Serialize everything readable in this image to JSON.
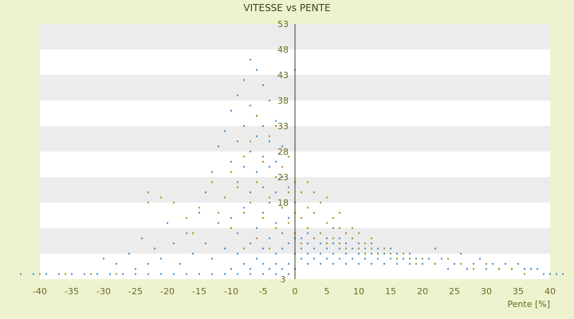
{
  "chart_data": {
    "type": "scatter",
    "title": "VITESSE vs PENTE",
    "xlabel": "Pente [%]",
    "ylabel": "",
    "xlim": [
      -40,
      40
    ],
    "ylim": [
      3,
      53
    ],
    "x_ticks": [
      -40,
      -35,
      -30,
      -25,
      -20,
      -15,
      -10,
      -5,
      0,
      5,
      10,
      15,
      20,
      25,
      30,
      35,
      40
    ],
    "y_ticks": [
      3,
      8,
      13,
      18,
      23,
      28,
      33,
      38,
      43,
      48,
      53
    ],
    "y_tick_labels": [
      "3",
      "",
      "",
      "18",
      "23",
      "28",
      "33",
      "38",
      "43",
      "48",
      "53"
    ],
    "grid": "horizontal bands",
    "colors": {
      "series_a": "#3a8fd8",
      "series_b": "#9a9a10",
      "band": "#ececec",
      "plot_bg": "#ffffff",
      "axis": "#404020"
    },
    "series": [
      {
        "color": "#3a8fd8",
        "points": [
          [
            -43,
            4
          ],
          [
            -41,
            4
          ],
          [
            -39,
            4
          ],
          [
            -37,
            4
          ],
          [
            -35,
            4
          ],
          [
            -33,
            4
          ],
          [
            -31,
            4
          ],
          [
            -29,
            4
          ],
          [
            -27,
            4
          ],
          [
            -25,
            4
          ],
          [
            -23,
            4
          ],
          [
            -21,
            4
          ],
          [
            -19,
            4
          ],
          [
            -17,
            4
          ],
          [
            -15,
            4
          ],
          [
            -13,
            4
          ],
          [
            -11,
            4
          ],
          [
            -9,
            4
          ],
          [
            -7,
            4
          ],
          [
            -5,
            4
          ],
          [
            -3,
            4
          ],
          [
            -1,
            4
          ],
          [
            -30,
            7
          ],
          [
            -28,
            6
          ],
          [
            -26,
            8
          ],
          [
            -25,
            5
          ],
          [
            -24,
            11
          ],
          [
            -23,
            6
          ],
          [
            -22,
            9
          ],
          [
            -21,
            7
          ],
          [
            -20,
            14
          ],
          [
            -19,
            10
          ],
          [
            -18,
            6
          ],
          [
            -17,
            12
          ],
          [
            -16,
            8
          ],
          [
            -15,
            16
          ],
          [
            -14,
            10
          ],
          [
            -14,
            20
          ],
          [
            -13,
            7
          ],
          [
            -13,
            24
          ],
          [
            -12,
            14
          ],
          [
            -12,
            29
          ],
          [
            -11,
            9
          ],
          [
            -11,
            19
          ],
          [
            -11,
            32
          ],
          [
            -10,
            5
          ],
          [
            -10,
            15
          ],
          [
            -10,
            26
          ],
          [
            -10,
            36
          ],
          [
            -9,
            8
          ],
          [
            -9,
            12
          ],
          [
            -9,
            22
          ],
          [
            -9,
            30
          ],
          [
            -9,
            39
          ],
          [
            -8,
            6
          ],
          [
            -8,
            17
          ],
          [
            -8,
            25
          ],
          [
            -8,
            33
          ],
          [
            -8,
            42
          ],
          [
            -7,
            5
          ],
          [
            -7,
            10
          ],
          [
            -7,
            20
          ],
          [
            -7,
            28
          ],
          [
            -7,
            37
          ],
          [
            -7,
            46
          ],
          [
            -6,
            7
          ],
          [
            -6,
            13
          ],
          [
            -6,
            24
          ],
          [
            -6,
            31
          ],
          [
            -6,
            35
          ],
          [
            -6,
            44
          ],
          [
            -5,
            6
          ],
          [
            -5,
            9
          ],
          [
            -5,
            16
          ],
          [
            -5,
            21
          ],
          [
            -5,
            27
          ],
          [
            -5,
            33
          ],
          [
            -5,
            41
          ],
          [
            -4,
            5
          ],
          [
            -4,
            11
          ],
          [
            -4,
            18
          ],
          [
            -4,
            25
          ],
          [
            -4,
            30
          ],
          [
            -4,
            38
          ],
          [
            -3,
            6
          ],
          [
            -3,
            8
          ],
          [
            -3,
            14
          ],
          [
            -3,
            20
          ],
          [
            -3,
            26
          ],
          [
            -3,
            34
          ],
          [
            -2,
            5
          ],
          [
            -2,
            9
          ],
          [
            -2,
            12
          ],
          [
            -2,
            17
          ],
          [
            -2,
            23
          ],
          [
            -2,
            29
          ],
          [
            -1,
            6
          ],
          [
            -1,
            10
          ],
          [
            -1,
            15
          ],
          [
            -1,
            21
          ],
          [
            0,
            5
          ],
          [
            0,
            8
          ],
          [
            0,
            11
          ],
          [
            0,
            18
          ],
          [
            0,
            44
          ],
          [
            1,
            7
          ],
          [
            1,
            9
          ],
          [
            1,
            11
          ],
          [
            2,
            6
          ],
          [
            2,
            8
          ],
          [
            2,
            10
          ],
          [
            2,
            12
          ],
          [
            3,
            7
          ],
          [
            3,
            9
          ],
          [
            3,
            11
          ],
          [
            4,
            6
          ],
          [
            4,
            8
          ],
          [
            4,
            10
          ],
          [
            4,
            12
          ],
          [
            5,
            7
          ],
          [
            5,
            9
          ],
          [
            5,
            11
          ],
          [
            6,
            6
          ],
          [
            6,
            8
          ],
          [
            6,
            10
          ],
          [
            6,
            13
          ],
          [
            7,
            7
          ],
          [
            7,
            9
          ],
          [
            7,
            11
          ],
          [
            8,
            6
          ],
          [
            8,
            8
          ],
          [
            8,
            10
          ],
          [
            9,
            7
          ],
          [
            9,
            9
          ],
          [
            9,
            11
          ],
          [
            10,
            6
          ],
          [
            10,
            8
          ],
          [
            10,
            10
          ],
          [
            11,
            7
          ],
          [
            11,
            9
          ],
          [
            12,
            6
          ],
          [
            12,
            8
          ],
          [
            12,
            10
          ],
          [
            13,
            7
          ],
          [
            13,
            9
          ],
          [
            14,
            6
          ],
          [
            14,
            8
          ],
          [
            15,
            7
          ],
          [
            15,
            9
          ],
          [
            16,
            6
          ],
          [
            16,
            8
          ],
          [
            17,
            7
          ],
          [
            18,
            6
          ],
          [
            18,
            8
          ],
          [
            19,
            7
          ],
          [
            20,
            6
          ],
          [
            21,
            7
          ],
          [
            22,
            6
          ],
          [
            22,
            9
          ],
          [
            23,
            7
          ],
          [
            24,
            5
          ],
          [
            25,
            6
          ],
          [
            26,
            8
          ],
          [
            27,
            5
          ],
          [
            28,
            6
          ],
          [
            29,
            7
          ],
          [
            30,
            5
          ],
          [
            31,
            6
          ],
          [
            32,
            5
          ],
          [
            33,
            6
          ],
          [
            34,
            5
          ],
          [
            35,
            6
          ],
          [
            36,
            5
          ],
          [
            37,
            5
          ],
          [
            38,
            5
          ],
          [
            39,
            4
          ],
          [
            40,
            4
          ],
          [
            41,
            4
          ],
          [
            42,
            4
          ]
        ]
      },
      {
        "color": "#9a9a10",
        "points": [
          [
            -23,
            18
          ],
          [
            -23,
            20
          ],
          [
            -21,
            19
          ],
          [
            -19,
            18
          ],
          [
            -17,
            15
          ],
          [
            -16,
            12
          ],
          [
            -15,
            17
          ],
          [
            -13,
            22
          ],
          [
            -12,
            16
          ],
          [
            -11,
            19
          ],
          [
            -10,
            13
          ],
          [
            -10,
            24
          ],
          [
            -9,
            21
          ],
          [
            -8,
            16
          ],
          [
            -8,
            27
          ],
          [
            -7,
            18
          ],
          [
            -7,
            30
          ],
          [
            -6,
            22
          ],
          [
            -6,
            35
          ],
          [
            -5,
            15
          ],
          [
            -5,
            26
          ],
          [
            -4,
            19
          ],
          [
            -4,
            31
          ],
          [
            -3,
            13
          ],
          [
            -3,
            23
          ],
          [
            -3,
            33
          ],
          [
            -2,
            17
          ],
          [
            -2,
            25
          ],
          [
            -1,
            14
          ],
          [
            -1,
            20
          ],
          [
            -1,
            27
          ],
          [
            0,
            12
          ],
          [
            0,
            16
          ],
          [
            0,
            22
          ],
          [
            1,
            10
          ],
          [
            1,
            15
          ],
          [
            1,
            20
          ],
          [
            2,
            13
          ],
          [
            2,
            17
          ],
          [
            2,
            22
          ],
          [
            3,
            11
          ],
          [
            3,
            16
          ],
          [
            3,
            20
          ],
          [
            4,
            12
          ],
          [
            4,
            18
          ],
          [
            5,
            10
          ],
          [
            5,
            14
          ],
          [
            5,
            19
          ],
          [
            6,
            11
          ],
          [
            6,
            15
          ],
          [
            7,
            10
          ],
          [
            7,
            13
          ],
          [
            7,
            16
          ],
          [
            8,
            9
          ],
          [
            8,
            12
          ],
          [
            9,
            11
          ],
          [
            9,
            13
          ],
          [
            10,
            9
          ],
          [
            10,
            12
          ],
          [
            11,
            8
          ],
          [
            11,
            10
          ],
          [
            12,
            9
          ],
          [
            12,
            11
          ],
          [
            13,
            8
          ],
          [
            14,
            9
          ],
          [
            15,
            8
          ],
          [
            16,
            7
          ],
          [
            17,
            8
          ],
          [
            18,
            7
          ],
          [
            19,
            6
          ],
          [
            20,
            7
          ],
          [
            22,
            6
          ],
          [
            24,
            7
          ],
          [
            26,
            6
          ],
          [
            28,
            5
          ],
          [
            30,
            6
          ],
          [
            32,
            5
          ],
          [
            34,
            5
          ],
          [
            36,
            4
          ],
          [
            -40,
            4
          ],
          [
            -36,
            4
          ],
          [
            -32,
            4
          ],
          [
            -28,
            4
          ],
          [
            -4,
            9
          ],
          [
            -6,
            11
          ],
          [
            -8,
            9
          ]
        ]
      }
    ]
  }
}
